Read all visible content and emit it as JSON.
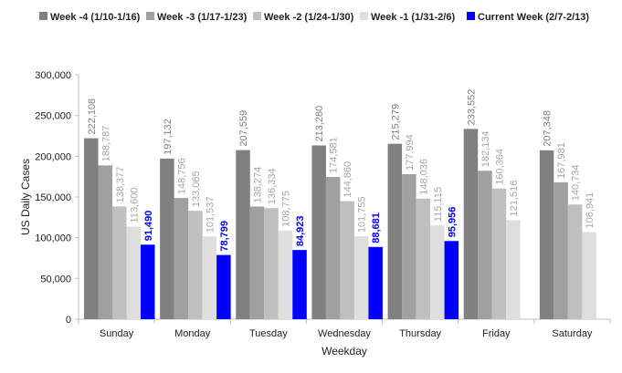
{
  "chart_data": {
    "type": "bar",
    "xlabel": "Weekday",
    "ylabel": "US Daily Cases",
    "ylim": [
      0,
      300000
    ],
    "yticks": [
      "0",
      "50,000",
      "100,000",
      "150,000",
      "200,000",
      "250,000",
      "300,000"
    ],
    "grid": false,
    "legend_position": "top",
    "categories": [
      "Sunday",
      "Monday",
      "Tuesday",
      "Wednesday",
      "Thursday",
      "Friday",
      "Saturday"
    ],
    "series": [
      {
        "name": "Week -4 (1/10-1/16)",
        "color": "#808080",
        "label_color": "#7f7f7f",
        "values": [
          222108,
          197132,
          207559,
          213280,
          215279,
          233552,
          207348
        ],
        "labels": [
          "222,108",
          "197,132",
          "207,559",
          "213,280",
          "215,279",
          "233,552",
          "207,348"
        ]
      },
      {
        "name": "Week -3 (1/17-1/23)",
        "color": "#a0a0a0",
        "label_color": "#a6a6a6",
        "values": [
          188787,
          148756,
          138274,
          174581,
          177994,
          182134,
          167981
        ],
        "labels": [
          "188,787",
          "148,756",
          "138,274",
          "174,581",
          "177,994",
          "182,134",
          "167,981"
        ]
      },
      {
        "name": "Week -2 (1/24-1/30)",
        "color": "#bfbfbf",
        "label_color": "#a6a6a6",
        "values": [
          138377,
          133065,
          136334,
          144860,
          148036,
          160364,
          140734
        ],
        "labels": [
          "138,377",
          "133,065",
          "136,334",
          "144,860",
          "148,036",
          "160,364",
          "140,734"
        ]
      },
      {
        "name": "Week -1 (1/31-2/6)",
        "color": "#dedede",
        "label_color": "#a6a6a6",
        "values": [
          113600,
          101537,
          108775,
          101755,
          115115,
          121516,
          106941
        ],
        "labels": [
          "113,600",
          "101,537",
          "108,775",
          "101,755",
          "115,115",
          "121,516",
          "106,941"
        ]
      },
      {
        "name": "Current Week (2/7-2/13)",
        "color": "#0000ff",
        "label_color": "#0000ff",
        "bold_labels": true,
        "values": [
          91490,
          78799,
          84923,
          88681,
          95956,
          null,
          null
        ],
        "labels": [
          "91,490",
          "78,799",
          "84,923",
          "88,681",
          "95,956",
          "",
          ""
        ]
      }
    ]
  }
}
